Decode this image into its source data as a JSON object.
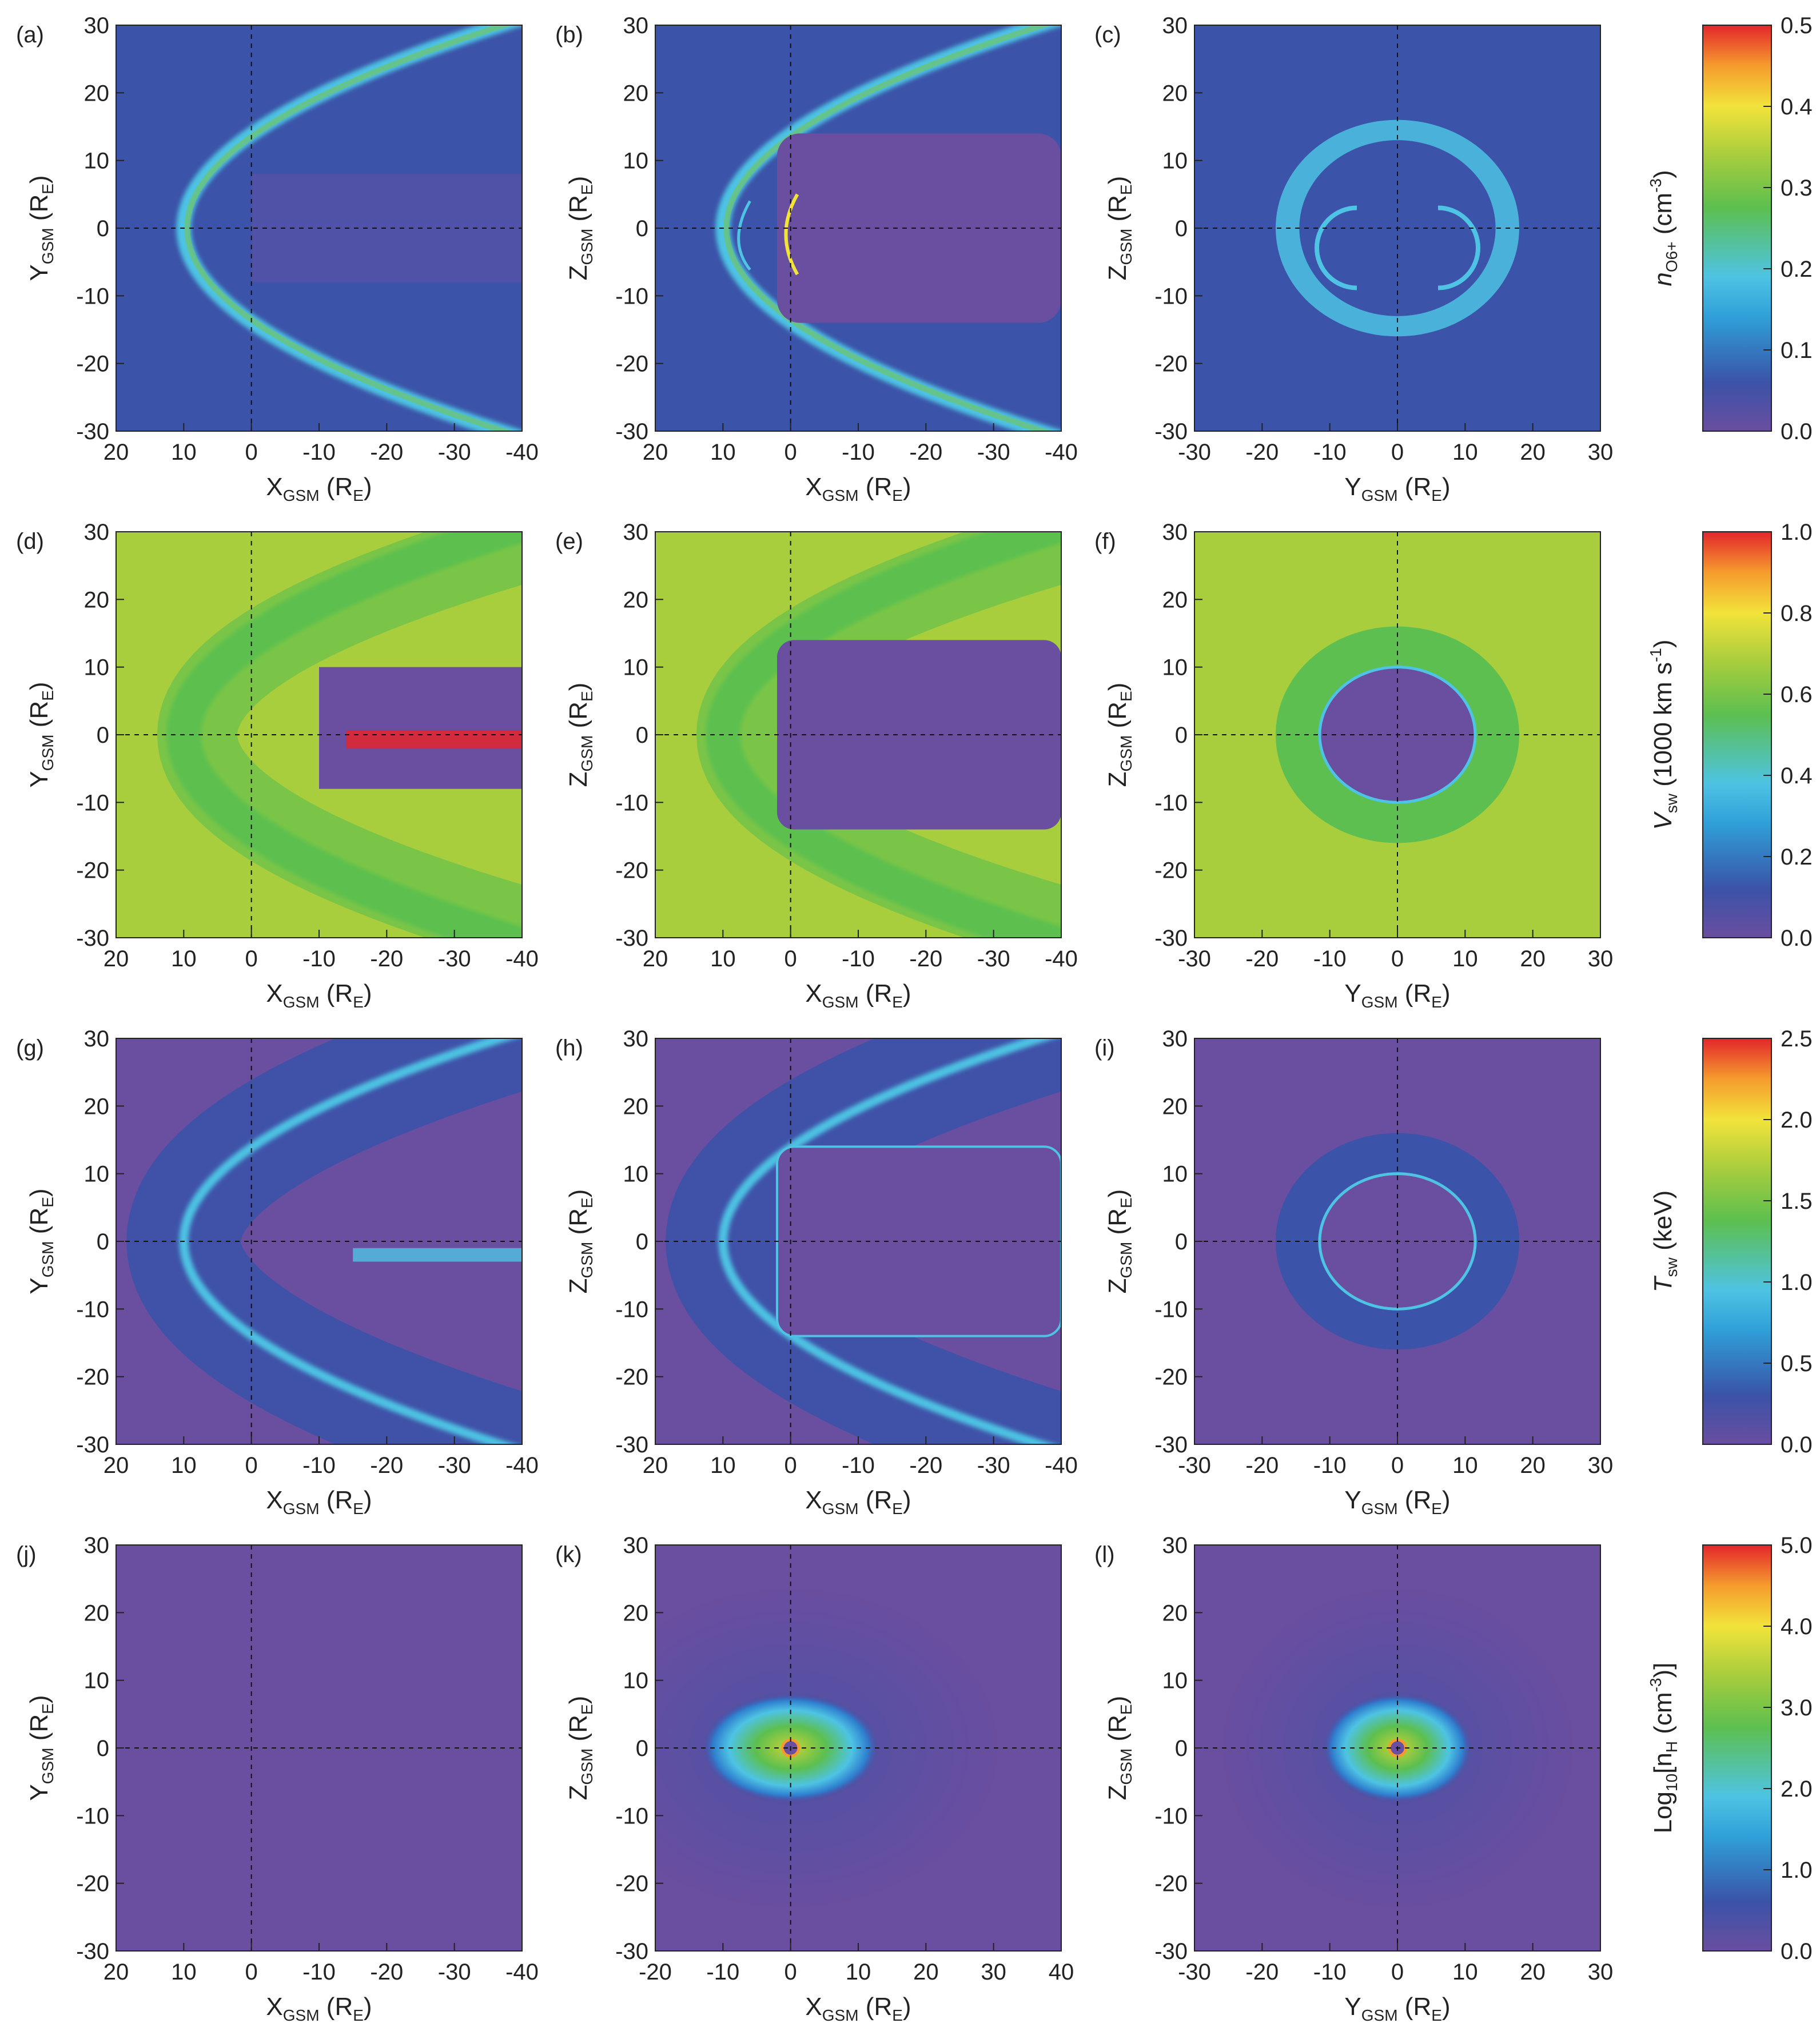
{
  "chart_data": {
    "type": "heatmap",
    "axis_names": {
      "X": {
        "main": "X",
        "sub": "GSM",
        "unit": "(R",
        "unit_sub": "E",
        "close": ")"
      },
      "Y": {
        "main": "Y",
        "sub": "GSM",
        "unit": "(R",
        "unit_sub": "E",
        "close": ")"
      },
      "Z": {
        "main": "Z",
        "sub": "GSM",
        "unit": "(R",
        "unit_sub": "E",
        "close": ")"
      }
    },
    "tick_sets": {
      "x_rev": [
        "20",
        "10",
        "0",
        "-10",
        "-20",
        "-30",
        "-40"
      ],
      "x_fwd": [
        "-20",
        "-10",
        "0",
        "10",
        "20",
        "30",
        "40"
      ],
      "y_sym": [
        "-30",
        "-20",
        "-10",
        "0",
        "10",
        "20",
        "30"
      ],
      "vert": [
        "30",
        "20",
        "10",
        "0",
        "-10",
        "-20",
        "-30"
      ]
    },
    "rows": [
      {
        "colorbar": {
          "ticks": [
            "0.5",
            "0.4",
            "0.3",
            "0.2",
            "0.1",
            "0.0"
          ],
          "label": {
            "sym": "n",
            "sub": "O6+",
            "unit": " (cm",
            "sup": "-3",
            "close": ")"
          },
          "range": [
            0.0,
            0.5
          ]
        },
        "panels": [
          {
            "id": "(a)",
            "xaxis": "X",
            "yaxis": "Y",
            "xticks": "x_rev",
            "bg": "#3b53a8"
          },
          {
            "id": "(b)",
            "xaxis": "X",
            "yaxis": "Z",
            "xticks": "x_rev",
            "bg": "#3b53a8"
          },
          {
            "id": "(c)",
            "xaxis": "Y",
            "yaxis": "Z",
            "xticks": "y_sym",
            "bg": "#3b53a8"
          }
        ]
      },
      {
        "colorbar": {
          "ticks": [
            "1.0",
            "0.8",
            "0.6",
            "0.4",
            "0.2",
            "0.0"
          ],
          "label": {
            "sym": "V",
            "sub": "sw",
            "unit": " (1000 km s",
            "sup": "-1",
            "close": ")"
          },
          "range": [
            0.0,
            1.0
          ]
        },
        "panels": [
          {
            "id": "(d)",
            "xaxis": "X",
            "yaxis": "Y",
            "xticks": "x_rev",
            "bg": "#a8cd3d"
          },
          {
            "id": "(e)",
            "xaxis": "X",
            "yaxis": "Z",
            "xticks": "x_rev",
            "bg": "#a8cd3d"
          },
          {
            "id": "(f)",
            "xaxis": "Y",
            "yaxis": "Z",
            "xticks": "y_sym",
            "bg": "#a8cd3d"
          }
        ]
      },
      {
        "colorbar": {
          "ticks": [
            "2.5",
            "2.0",
            "1.5",
            "1.0",
            "0.5",
            "0.0"
          ],
          "label": {
            "sym": "T",
            "sub": "sw",
            "unit": " (keV)",
            "sup": "",
            "close": ""
          },
          "range": [
            0.0,
            2.5
          ]
        },
        "panels": [
          {
            "id": "(g)",
            "xaxis": "X",
            "yaxis": "Y",
            "xticks": "x_rev",
            "bg": "#6a4ea0"
          },
          {
            "id": "(h)",
            "xaxis": "X",
            "yaxis": "Z",
            "xticks": "x_rev",
            "bg": "#6a4ea0"
          },
          {
            "id": "(i)",
            "xaxis": "Y",
            "yaxis": "Z",
            "xticks": "y_sym",
            "bg": "#6a4ea0"
          }
        ]
      },
      {
        "colorbar": {
          "ticks": [
            "5.0",
            "4.0",
            "3.0",
            "2.0",
            "1.0",
            "0.0"
          ],
          "label": {
            "sym": "Log",
            "sub": "10",
            "unit": "[n",
            "unit_sub": "H",
            "tail": " (cm",
            "sup": "-3",
            "close": ")]"
          },
          "range": [
            0.0,
            5.0
          ]
        },
        "panels": [
          {
            "id": "(j)",
            "xaxis": "X",
            "yaxis": "Y",
            "xticks": "x_rev",
            "bg": "#6a4ea0"
          },
          {
            "id": "(k)",
            "xaxis": "X",
            "yaxis": "Z",
            "xticks": "x_fwd",
            "bg": "#6a4ea0"
          },
          {
            "id": "(l)",
            "xaxis": "Y",
            "yaxis": "Z",
            "xticks": "y_sym",
            "bg": "#6a4ea0"
          }
        ]
      }
    ],
    "colormap": [
      "#6a4ea0",
      "#3b53a8",
      "#2f9fd8",
      "#4ec3e3",
      "#5cbf4f",
      "#a8cd3d",
      "#f2e33a",
      "#f59b2d",
      "#e3262c"
    ]
  }
}
